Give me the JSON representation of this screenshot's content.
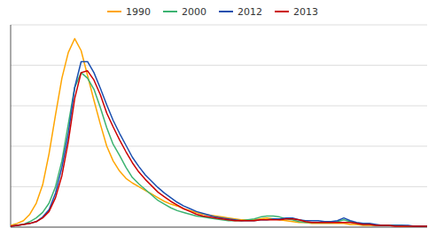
{
  "chart_data": {
    "type": "line",
    "x": [
      15,
      16,
      17,
      18,
      19,
      20,
      21,
      22,
      23,
      24,
      25,
      26,
      27,
      28,
      29,
      30,
      31,
      32,
      33,
      34,
      35,
      36,
      37,
      38,
      39,
      40,
      41,
      42,
      43,
      44,
      45,
      46,
      47,
      48,
      49,
      50,
      51,
      52,
      53,
      54,
      55,
      56,
      57,
      58,
      59,
      60,
      61,
      62,
      63,
      64,
      65,
      66,
      67,
      68,
      69,
      70,
      71,
      72,
      73,
      74,
      75,
      76,
      77,
      78,
      79,
      80
    ],
    "series": [
      {
        "name": "1990",
        "color": "#FFA500",
        "values": [
          2,
          4,
          7,
          14,
          26,
          46,
          80,
          122,
          162,
          190,
          205,
          192,
          165,
          138,
          112,
          88,
          72,
          61,
          53,
          48,
          44,
          40,
          36,
          32,
          28,
          25,
          23,
          20,
          18,
          16,
          14,
          13,
          12,
          11,
          10,
          9,
          8,
          8,
          8,
          9,
          10,
          9,
          8,
          7,
          6,
          5,
          5,
          4,
          4,
          4,
          4,
          4,
          4,
          3,
          3,
          2,
          2,
          2,
          2,
          2,
          2,
          1,
          1,
          1,
          1,
          1
        ]
      },
      {
        "name": "2000",
        "color": "#3CB371",
        "values": [
          1,
          2,
          3,
          6,
          10,
          16,
          26,
          44,
          72,
          112,
          152,
          168,
          162,
          150,
          130,
          108,
          90,
          78,
          65,
          54,
          47,
          41,
          35,
          29,
          25,
          21,
          18,
          16,
          14,
          12,
          11,
          10,
          9,
          8,
          7,
          7,
          7,
          8,
          9,
          11,
          12,
          12,
          11,
          9,
          8,
          6,
          5,
          5,
          5,
          5,
          5,
          6,
          8,
          6,
          4,
          3,
          3,
          2,
          2,
          2,
          2,
          2,
          1,
          1,
          1,
          1
        ]
      },
      {
        "name": "2012",
        "color": "#1A4FAF",
        "values": [
          1,
          2,
          3,
          4,
          6,
          11,
          19,
          37,
          65,
          102,
          152,
          180,
          180,
          168,
          151,
          133,
          116,
          102,
          89,
          76,
          66,
          57,
          50,
          43,
          37,
          32,
          27,
          23,
          20,
          17,
          15,
          13,
          11,
          10,
          9,
          8,
          7,
          7,
          7,
          8,
          8,
          9,
          9,
          10,
          10,
          8,
          7,
          7,
          7,
          6,
          6,
          7,
          10,
          7,
          5,
          4,
          4,
          3,
          2,
          2,
          2,
          2,
          2,
          1,
          1,
          1
        ]
      },
      {
        "name": "2013",
        "color": "#CC0000",
        "values": [
          1,
          2,
          3,
          4,
          6,
          10,
          17,
          32,
          56,
          93,
          140,
          168,
          170,
          160,
          144,
          124,
          109,
          95,
          82,
          70,
          60,
          52,
          45,
          38,
          33,
          28,
          24,
          20,
          17,
          14,
          12,
          11,
          10,
          9,
          8,
          7,
          7,
          7,
          7,
          8,
          8,
          8,
          8,
          9,
          9,
          8,
          6,
          5,
          5,
          5,
          5,
          5,
          5,
          5,
          4,
          3,
          3,
          2,
          2,
          2,
          1,
          1,
          1,
          1,
          1,
          1
        ]
      }
    ],
    "xlim": [
      15,
      80
    ],
    "xticks": [],
    "ylim": [
      0,
      220
    ],
    "yticks": [
      0,
      44,
      88,
      132,
      176,
      220
    ],
    "grid": true,
    "legend": "top",
    "tick_labels": false
  }
}
